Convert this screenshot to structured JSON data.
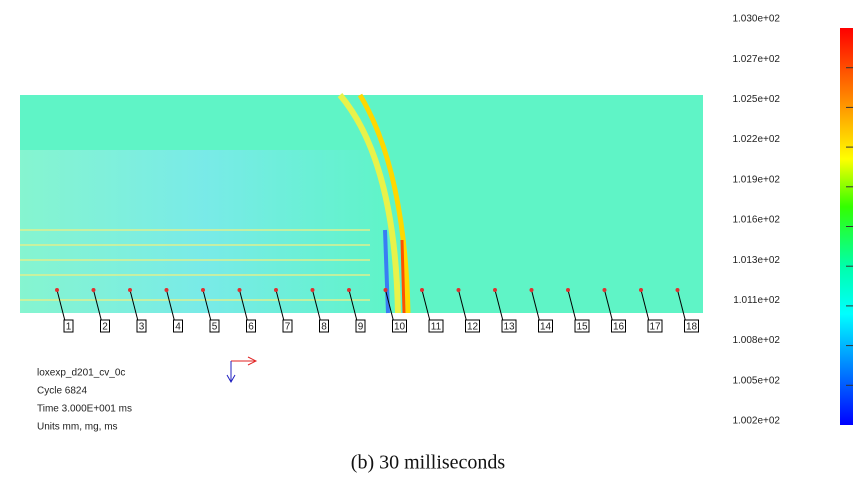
{
  "colorbar": {
    "labels": [
      "1.030e+02",
      "1.027e+02",
      "1.025e+02",
      "1.022e+02",
      "1.019e+02",
      "1.016e+02",
      "1.013e+02",
      "1.011e+02",
      "1.008e+02",
      "1.005e+02",
      "1.002e+02"
    ]
  },
  "probes": [
    "1",
    "2",
    "3",
    "4",
    "5",
    "6",
    "7",
    "8",
    "9",
    "10",
    "11",
    "12",
    "13",
    "14",
    "15",
    "16",
    "17",
    "18"
  ],
  "info": [
    "loxexp_d201_cv_0c",
    "Cycle 6824",
    "Time 3.000E+001 ms",
    "Units mm, mg, ms"
  ],
  "caption": "(b) 30 milliseconds"
}
